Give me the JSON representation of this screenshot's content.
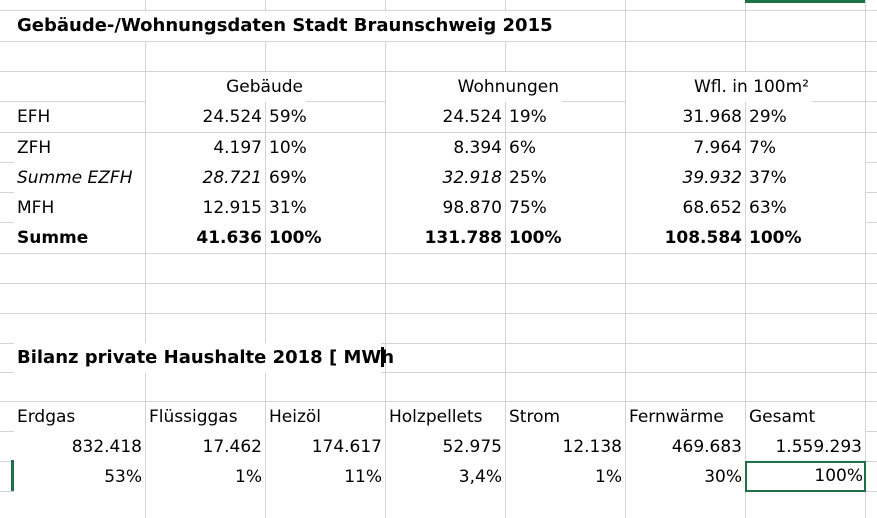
{
  "section1": {
    "title": "Gebäude-/Wohnungsdaten Stadt Braunschweig 2015",
    "headers": {
      "gebaeude": "Gebäude",
      "wohnungen": "Wohnungen",
      "wfl": "Wfl. in 100m²"
    },
    "rows": [
      {
        "label": "EFH",
        "geb": "24.524",
        "geb_pct": "59%",
        "woh": "24.524",
        "woh_pct": "19%",
        "wfl": "31.968",
        "wfl_pct": "29%",
        "style": "normal"
      },
      {
        "label": "ZFH",
        "geb": "4.197",
        "geb_pct": "10%",
        "woh": "8.394",
        "woh_pct": "6%",
        "wfl": "7.964",
        "wfl_pct": "7%",
        "style": "normal"
      },
      {
        "label": "Summe EZFH",
        "geb": "28.721",
        "geb_pct": "69%",
        "woh": "32.918",
        "woh_pct": "25%",
        "wfl": "39.932",
        "wfl_pct": "37%",
        "style": "italic"
      },
      {
        "label": "MFH",
        "geb": "12.915",
        "geb_pct": "31%",
        "woh": "98.870",
        "woh_pct": "75%",
        "wfl": "68.652",
        "wfl_pct": "63%",
        "style": "normal"
      },
      {
        "label": "Summe",
        "geb": "41.636",
        "geb_pct": "100%",
        "woh": "131.788",
        "woh_pct": "100%",
        "wfl": "108.584",
        "wfl_pct": "100%",
        "style": "bold"
      }
    ]
  },
  "section2": {
    "title": "Bilanz private Haushalte 2018 [ MWh",
    "headers": [
      "Erdgas",
      "Flüssiggas",
      "Heizöl",
      "Holzpellets",
      "Strom",
      "Fernwärme",
      "Gesamt"
    ],
    "values": [
      "832.418",
      "17.462",
      "174.617",
      "52.975",
      "12.138",
      "469.683",
      "1.559.293"
    ],
    "percents": [
      "53%",
      "1%",
      "11%",
      "3,4%",
      "1%",
      "30%",
      "100%"
    ]
  }
}
